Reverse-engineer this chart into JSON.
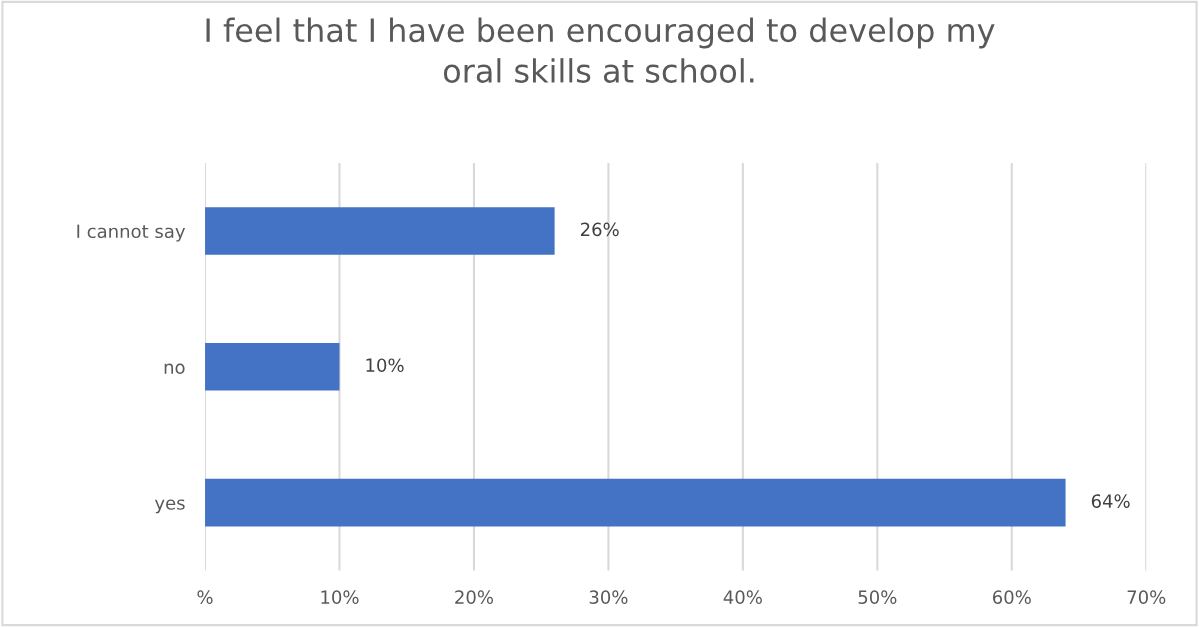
{
  "chart_data": {
    "type": "bar",
    "orientation": "horizontal",
    "title": "I feel that I have been encouraged to develop my\noral skills at school.",
    "categories": [
      "I cannot say",
      "no",
      "yes"
    ],
    "values": [
      26,
      10,
      64
    ],
    "value_labels": [
      "26%",
      "10%",
      "64%"
    ],
    "color": "#4472c4",
    "xlim": [
      0,
      70
    ],
    "xticks": [
      {
        "value": 0,
        "label": "%"
      },
      {
        "value": 10,
        "label": "10%"
      },
      {
        "value": 20,
        "label": "20%"
      },
      {
        "value": 30,
        "label": "30%"
      },
      {
        "value": 40,
        "label": "40%"
      },
      {
        "value": 50,
        "label": "50%"
      },
      {
        "value": 60,
        "label": "60%"
      },
      {
        "value": 70,
        "label": "70%"
      }
    ],
    "grid": "x",
    "legend": false
  }
}
